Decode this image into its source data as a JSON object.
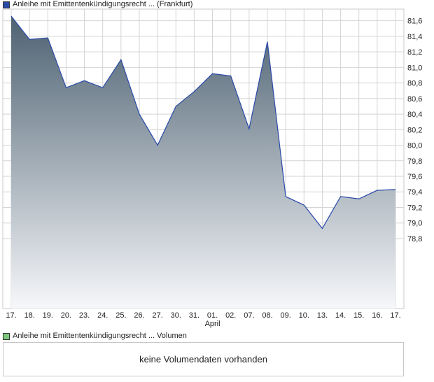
{
  "legend": {
    "price_label": "Anleihe mit Emittentenkündigungsrecht ... (Frankfurt)",
    "volume_label": "Anleihe mit Emittentenkündigungsrecht ... Volumen"
  },
  "volume": {
    "empty_text": "keine Volumendaten vorhanden"
  },
  "colors": {
    "line": "#2a4aa8",
    "fill_top": "#4e6272",
    "fill_bottom": "#f6f7fa",
    "grid": "#d4d4d4",
    "price_swatch": "#2a4aa8",
    "volume_swatch": "#7cc87c"
  },
  "chart_data": {
    "type": "area",
    "x": [
      "17.",
      "18.",
      "19.",
      "20.",
      "23.",
      "24.",
      "25.",
      "26.",
      "27.",
      "30.",
      "31.",
      "01.",
      "02.",
      "07.",
      "08.",
      "09.",
      "10.",
      "13.",
      "14.",
      "15.",
      "16.",
      "17."
    ],
    "x_sublabels": [
      {
        "index": 11,
        "text": "April"
      }
    ],
    "series": [
      {
        "values": [
          81.66,
          81.36,
          81.38,
          80.74,
          80.83,
          80.74,
          81.1,
          80.4,
          80.0,
          80.5,
          80.69,
          80.92,
          80.89,
          80.21,
          81.33,
          79.34,
          79.23,
          78.93,
          79.34,
          79.31,
          79.42,
          79.43
        ]
      }
    ],
    "ylim": [
      77.9,
      81.75
    ],
    "yticks": [
      "81,6",
      "81,4",
      "81,2",
      "81,0",
      "80,8",
      "80,6",
      "80,4",
      "80,2",
      "80,0",
      "79,8",
      "79,6",
      "79,4",
      "79,2",
      "79,0",
      "78,8"
    ],
    "ytick_values": [
      81.6,
      81.4,
      81.2,
      81.0,
      80.8,
      80.6,
      80.4,
      80.2,
      80.0,
      79.8,
      79.6,
      79.4,
      79.2,
      79.0,
      78.8
    ],
    "grid": true,
    "title": "",
    "xlabel": "",
    "ylabel": ""
  }
}
